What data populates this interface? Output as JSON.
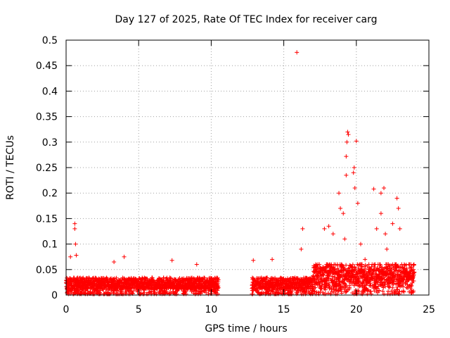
{
  "chart_data": {
    "type": "scatter",
    "title": "Day 127 of 2025, Rate Of TEC Index for receiver carg",
    "xlabel": "GPS time / hours",
    "ylabel": "ROTI / TECUs",
    "xlim": [
      0,
      25
    ],
    "ylim": [
      0,
      0.5
    ],
    "x_ticks": [
      0,
      5,
      10,
      15,
      20,
      25
    ],
    "x_tick_labels": [
      "0",
      "5",
      "10",
      "15",
      "20",
      "25"
    ],
    "y_ticks": [
      0,
      0.05,
      0.1,
      0.15,
      0.2,
      0.25,
      0.3,
      0.35,
      0.4,
      0.45,
      0.5
    ],
    "y_tick_labels": [
      "0",
      "0.05",
      "0.1",
      "0.15",
      "0.2",
      "0.25",
      "0.3",
      "0.35",
      "0.4",
      "0.45",
      "0.5"
    ],
    "grid": true,
    "marker": "+",
    "color": "#ff0000",
    "series": [
      {
        "name": "ROTI",
        "segments": [
          [
            0,
            10.5
          ],
          [
            12.8,
            24.0
          ]
        ],
        "outliers": [
          [
            0.3,
            0.075
          ],
          [
            0.6,
            0.14
          ],
          [
            0.6,
            0.13
          ],
          [
            0.65,
            0.1
          ],
          [
            0.7,
            0.078
          ],
          [
            3.3,
            0.065
          ],
          [
            4.0,
            0.075
          ],
          [
            7.3,
            0.068
          ],
          [
            9.0,
            0.06
          ],
          [
            12.9,
            0.068
          ],
          [
            14.2,
            0.07
          ],
          [
            15.9,
            0.476
          ],
          [
            16.3,
            0.13
          ],
          [
            16.2,
            0.09
          ],
          [
            17.8,
            0.13
          ],
          [
            18.1,
            0.135
          ],
          [
            18.4,
            0.12
          ],
          [
            18.8,
            0.2
          ],
          [
            18.9,
            0.17
          ],
          [
            19.1,
            0.16
          ],
          [
            19.2,
            0.11
          ],
          [
            19.3,
            0.235
          ],
          [
            19.3,
            0.272
          ],
          [
            19.35,
            0.3
          ],
          [
            19.4,
            0.32
          ],
          [
            19.45,
            0.315
          ],
          [
            19.8,
            0.24
          ],
          [
            19.85,
            0.25
          ],
          [
            19.9,
            0.21
          ],
          [
            20.0,
            0.302
          ],
          [
            20.1,
            0.18
          ],
          [
            20.3,
            0.1
          ],
          [
            21.2,
            0.208
          ],
          [
            21.4,
            0.13
          ],
          [
            21.7,
            0.16
          ],
          [
            21.7,
            0.2
          ],
          [
            21.9,
            0.21
          ],
          [
            22.0,
            0.12
          ],
          [
            22.1,
            0.09
          ],
          [
            22.5,
            0.14
          ],
          [
            22.8,
            0.19
          ],
          [
            22.9,
            0.17
          ],
          [
            23.0,
            0.13
          ],
          [
            20.6,
            0.07
          ],
          [
            17.2,
            0.06
          ]
        ]
      }
    ]
  }
}
